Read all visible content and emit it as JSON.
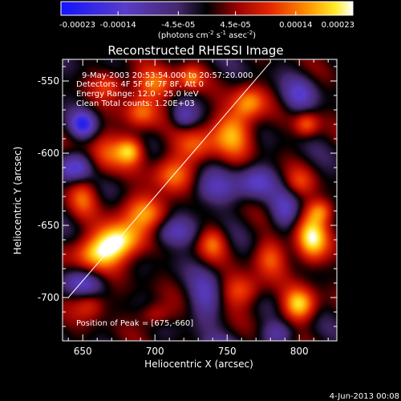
{
  "chart_data": {
    "type": "heatmap",
    "title": "Reconstructed RHESSI Image",
    "xlabel": "Heliocentric X (arcsec)",
    "ylabel": "Heliocentric Y (arcsec)",
    "xlim": [
      636,
      826
    ],
    "ylim": [
      -730,
      -535
    ],
    "x_ticks": [
      650,
      700,
      750,
      800
    ],
    "y_ticks": [
      -700,
      -650,
      -600,
      -550
    ],
    "colorbar": {
      "label_text": "(photons cm",
      "label_exp1": "-2",
      "label_mid": " s",
      "label_exp2": "-1",
      "label_mid2": " asec",
      "label_exp3": "-2",
      "label_end": ")",
      "range": [
        -0.00023,
        0.00023
      ],
      "ticks": [
        {
          "value": -0.00023,
          "label": "-0.00023"
        },
        {
          "value": -0.00014,
          "label": "-0.00014"
        },
        {
          "value": -4.5e-05,
          "label": "-4.5e-05"
        },
        {
          "value": 4.5e-05,
          "label": "4.5e-05"
        },
        {
          "value": 0.00014,
          "label": "0.00014"
        },
        {
          "value": 0.00023,
          "label": "0.00023"
        }
      ]
    },
    "annotations": [
      "9-May-2003 20:53:54.000  to  20:57:20.000",
      "Detectors: 4F 5F 6F 7F 8F, Att 0",
      "Energy Range: 12.0 - 25.0 keV",
      "Clean     Total counts: 1.20E+03"
    ],
    "peak_label": "Position of Peak = [675,-660]",
    "peak": {
      "x": 675,
      "y": -660
    },
    "limb_line": {
      "x": [
        640,
        780
      ],
      "y": [
        -700,
        -537
      ]
    },
    "grid": false,
    "image_values_note_free": true,
    "blobs": [
      {
        "x": 675,
        "y": -660,
        "sx": 12,
        "sy": 9,
        "a": 1.0
      },
      {
        "x": 660,
        "y": -670,
        "sx": 14,
        "sy": 8,
        "a": 0.6
      },
      {
        "x": 695,
        "y": -640,
        "sx": 12,
        "sy": 9,
        "a": 0.65
      },
      {
        "x": 712,
        "y": -615,
        "sx": 10,
        "sy": 9,
        "a": 0.55
      },
      {
        "x": 728,
        "y": -595,
        "sx": 10,
        "sy": 9,
        "a": 0.55
      },
      {
        "x": 755,
        "y": -585,
        "sx": 10,
        "sy": 12,
        "a": 0.7
      },
      {
        "x": 765,
        "y": -565,
        "sx": 8,
        "sy": 8,
        "a": 0.6
      },
      {
        "x": 683,
        "y": -598,
        "sx": 7,
        "sy": 7,
        "a": 0.75
      },
      {
        "x": 665,
        "y": -600,
        "sx": 9,
        "sy": 11,
        "a": 0.45
      },
      {
        "x": 690,
        "y": -572,
        "sx": 8,
        "sy": 8,
        "a": 0.55
      },
      {
        "x": 700,
        "y": -552,
        "sx": 12,
        "sy": 8,
        "a": 0.6
      },
      {
        "x": 668,
        "y": -552,
        "sx": 8,
        "sy": 7,
        "a": 0.45
      },
      {
        "x": 725,
        "y": -548,
        "sx": 6,
        "sy": 6,
        "a": 0.5
      },
      {
        "x": 650,
        "y": -630,
        "sx": 7,
        "sy": 10,
        "a": 0.45
      },
      {
        "x": 655,
        "y": -705,
        "sx": 8,
        "sy": 7,
        "a": 0.45
      },
      {
        "x": 700,
        "y": -712,
        "sx": 8,
        "sy": 6,
        "a": 0.4
      },
      {
        "x": 740,
        "y": -662,
        "sx": 7,
        "sy": 8,
        "a": 0.5
      },
      {
        "x": 760,
        "y": -695,
        "sx": 10,
        "sy": 8,
        "a": 0.55
      },
      {
        "x": 780,
        "y": -672,
        "sx": 8,
        "sy": 9,
        "a": 0.5
      },
      {
        "x": 808,
        "y": -660,
        "sx": 8,
        "sy": 12,
        "a": 0.9
      },
      {
        "x": 800,
        "y": -705,
        "sx": 8,
        "sy": 8,
        "a": 0.85
      },
      {
        "x": 815,
        "y": -640,
        "sx": 7,
        "sy": 6,
        "a": 0.55
      },
      {
        "x": 805,
        "y": -580,
        "sx": 6,
        "sy": 6,
        "a": 0.55
      },
      {
        "x": 800,
        "y": -620,
        "sx": 7,
        "sy": 7,
        "a": 0.35
      },
      {
        "x": 650,
        "y": -580,
        "sx": 6,
        "sy": 6,
        "a": -0.75
      },
      {
        "x": 645,
        "y": -610,
        "sx": 8,
        "sy": 7,
        "a": -0.7
      },
      {
        "x": 650,
        "y": -690,
        "sx": 10,
        "sy": 6,
        "a": -0.45
      },
      {
        "x": 712,
        "y": -655,
        "sx": 12,
        "sy": 7,
        "a": -0.5
      },
      {
        "x": 740,
        "y": -625,
        "sx": 12,
        "sy": 8,
        "a": -0.45
      },
      {
        "x": 735,
        "y": -700,
        "sx": 8,
        "sy": 12,
        "a": -0.45
      },
      {
        "x": 770,
        "y": -620,
        "sx": 9,
        "sy": 8,
        "a": -0.5
      },
      {
        "x": 790,
        "y": -640,
        "sx": 7,
        "sy": 9,
        "a": -0.45
      },
      {
        "x": 800,
        "y": -560,
        "sx": 8,
        "sy": 8,
        "a": -0.45
      },
      {
        "x": 720,
        "y": -575,
        "sx": 6,
        "sy": 6,
        "a": -0.4
      },
      {
        "x": 745,
        "y": -735,
        "sx": 9,
        "sy": 5,
        "a": -0.35
      },
      {
        "x": 785,
        "y": -725,
        "sx": 8,
        "sy": 6,
        "a": -0.4
      }
    ]
  },
  "footer": {
    "timestamp": "4-Jun-2013 00:08"
  }
}
